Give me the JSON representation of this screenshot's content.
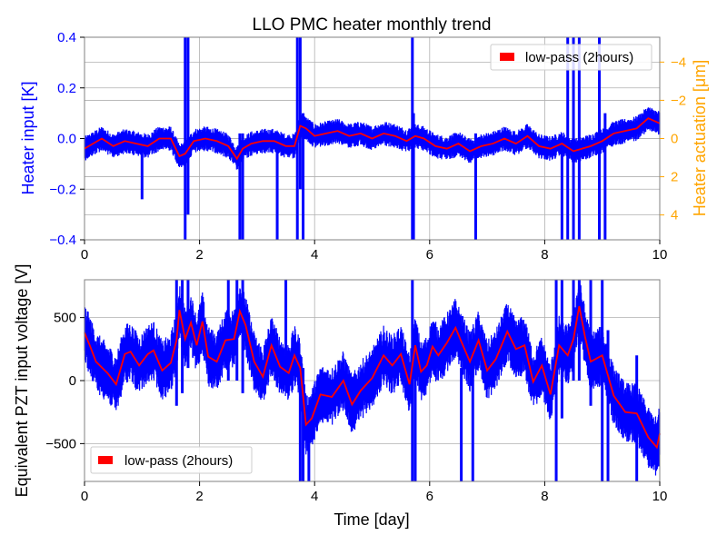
{
  "title": "LLO PMC heater monthly trend",
  "colors": {
    "raw": "#0000ff",
    "lowpass": "#ff0000",
    "left_axis": "#0000ff",
    "right_axis": "#ffa500",
    "grid": "#b0b0b0",
    "frame": "#808080"
  },
  "chart_data": [
    {
      "type": "line",
      "xlabel": "",
      "ylabel": "Heater input [K]",
      "y2label": "Heater actuation [μm]",
      "xlim": [
        0,
        10
      ],
      "ylim": [
        -0.4,
        0.4
      ],
      "y2lim": [
        5.3,
        -5.3
      ],
      "x_ticks": [
        "0",
        "2",
        "4",
        "6",
        "8",
        "10"
      ],
      "y_ticks": [
        "−0.4",
        "−0.2",
        "0.0",
        "0.2",
        "0.4"
      ],
      "y2_ticks": [
        "−4",
        "−2",
        "0",
        "2",
        "4"
      ],
      "grid": true,
      "legend": {
        "position": "top-right",
        "entries": [
          "low-pass (2hours)"
        ]
      },
      "series": [
        {
          "name": "low-pass (2hours)",
          "x": [
            0.0,
            0.3,
            0.5,
            0.7,
            0.9,
            1.1,
            1.3,
            1.5,
            1.65,
            1.75,
            1.9,
            2.1,
            2.3,
            2.5,
            2.65,
            2.75,
            2.9,
            3.1,
            3.3,
            3.5,
            3.65,
            3.75,
            3.85,
            4.0,
            4.2,
            4.4,
            4.6,
            4.8,
            5.0,
            5.2,
            5.4,
            5.6,
            5.75,
            5.9,
            6.1,
            6.3,
            6.5,
            6.7,
            6.9,
            7.1,
            7.3,
            7.5,
            7.7,
            7.9,
            8.1,
            8.3,
            8.5,
            8.65,
            8.8,
            9.0,
            9.2,
            9.4,
            9.6,
            9.8,
            10.0
          ],
          "values": [
            -0.04,
            0.0,
            -0.03,
            -0.01,
            -0.02,
            -0.03,
            0.0,
            0.0,
            -0.07,
            -0.06,
            -0.01,
            0.0,
            -0.01,
            -0.03,
            -0.08,
            -0.04,
            -0.02,
            -0.01,
            -0.01,
            -0.03,
            -0.03,
            0.05,
            0.04,
            0.01,
            0.02,
            0.03,
            0.01,
            0.02,
            0.0,
            0.02,
            0.01,
            -0.01,
            0.01,
            0.0,
            -0.03,
            -0.04,
            -0.02,
            -0.05,
            -0.03,
            -0.02,
            0.0,
            -0.02,
            0.01,
            -0.03,
            -0.04,
            -0.02,
            -0.05,
            -0.04,
            -0.03,
            -0.01,
            0.02,
            0.03,
            0.04,
            0.08,
            0.06
          ]
        }
      ]
    },
    {
      "type": "line",
      "xlabel": "Time [day]",
      "ylabel": "Equivalent PZT input voltage [V]",
      "xlim": [
        0,
        10
      ],
      "ylim": [
        -800,
        800
      ],
      "x_ticks": [
        "0",
        "2",
        "4",
        "6",
        "8",
        "10"
      ],
      "y_ticks": [
        "−500",
        "0",
        "500"
      ],
      "grid": true,
      "legend": {
        "position": "bottom-left",
        "entries": [
          "low-pass (2hours)"
        ]
      },
      "series": [
        {
          "name": "low-pass (2hours)",
          "x": [
            0.0,
            0.1,
            0.2,
            0.4,
            0.55,
            0.7,
            0.8,
            0.95,
            1.1,
            1.2,
            1.35,
            1.5,
            1.6,
            1.65,
            1.75,
            1.85,
            1.95,
            2.05,
            2.15,
            2.3,
            2.45,
            2.6,
            2.7,
            2.8,
            2.95,
            3.1,
            3.25,
            3.4,
            3.55,
            3.65,
            3.75,
            3.85,
            3.95,
            4.1,
            4.3,
            4.5,
            4.65,
            4.8,
            5.0,
            5.2,
            5.35,
            5.5,
            5.65,
            5.75,
            5.85,
            5.95,
            6.05,
            6.15,
            6.3,
            6.45,
            6.55,
            6.7,
            6.85,
            7.0,
            7.15,
            7.35,
            7.5,
            7.65,
            7.8,
            7.95,
            8.1,
            8.25,
            8.4,
            8.5,
            8.6,
            8.7,
            8.8,
            9.0,
            9.2,
            9.4,
            9.6,
            9.8,
            9.95,
            10.0
          ],
          "values": [
            380,
            270,
            150,
            60,
            -30,
            210,
            230,
            120,
            210,
            240,
            80,
            140,
            320,
            560,
            330,
            460,
            280,
            470,
            190,
            150,
            320,
            330,
            550,
            440,
            150,
            30,
            280,
            110,
            60,
            200,
            100,
            -350,
            -300,
            -110,
            -130,
            0,
            -190,
            -80,
            20,
            200,
            120,
            210,
            -30,
            280,
            70,
            120,
            270,
            200,
            300,
            420,
            310,
            150,
            320,
            80,
            170,
            390,
            250,
            280,
            -10,
            120,
            -110,
            280,
            200,
            330,
            590,
            350,
            150,
            200,
            -120,
            -250,
            -260,
            -450,
            -530,
            -420
          ]
        }
      ]
    }
  ]
}
